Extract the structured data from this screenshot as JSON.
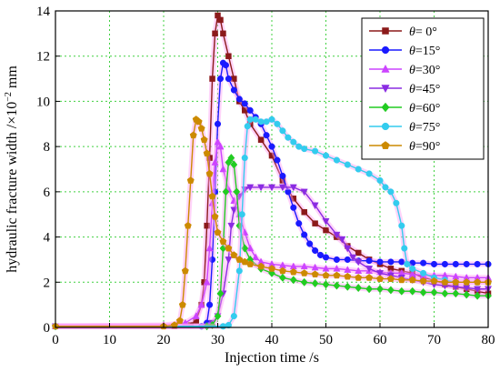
{
  "chart_data": {
    "type": "line",
    "xlabel": "Injection time /s",
    "ylabel_main": "hydraulic fracture width /×10",
    "ylabel_exp": "−2",
    "ylabel_unit": " mm",
    "xlim": [
      0,
      80
    ],
    "ylim": [
      0,
      14
    ],
    "x_ticks": [
      0,
      10,
      20,
      30,
      40,
      50,
      60,
      70,
      80
    ],
    "y_ticks": [
      0,
      2,
      4,
      6,
      8,
      10,
      12,
      14
    ],
    "grid": true,
    "legend_position": "top-right",
    "series": [
      {
        "name": "θ= 0°",
        "legend_symbol": "θ",
        "legend_rest": "= 0°",
        "color": "#8b1a1a",
        "halo": "#ff9ff3",
        "marker": "square",
        "points": [
          [
            0,
            0.05
          ],
          [
            22,
            0.05
          ],
          [
            25,
            0.1
          ],
          [
            26,
            0.3
          ],
          [
            27,
            1.0
          ],
          [
            27.5,
            2.0
          ],
          [
            28,
            4.5
          ],
          [
            28.5,
            7.5
          ],
          [
            29,
            11.0
          ],
          [
            29.5,
            13.0
          ],
          [
            30,
            13.8
          ],
          [
            30.5,
            13.6
          ],
          [
            31,
            13.0
          ],
          [
            32,
            12.0
          ],
          [
            33,
            11.0
          ],
          [
            34,
            10.0
          ],
          [
            35,
            9.6
          ],
          [
            36,
            9.0
          ],
          [
            38,
            8.3
          ],
          [
            40,
            7.6
          ],
          [
            42,
            6.5
          ],
          [
            44,
            5.7
          ],
          [
            46,
            5.1
          ],
          [
            48,
            4.6
          ],
          [
            50,
            4.3
          ],
          [
            52,
            4.0
          ],
          [
            54,
            3.6
          ],
          [
            56,
            3.3
          ],
          [
            58,
            3.0
          ],
          [
            60,
            2.8
          ],
          [
            62,
            2.6
          ],
          [
            64,
            2.5
          ],
          [
            66,
            2.4
          ],
          [
            68,
            2.2
          ],
          [
            70,
            2.1
          ],
          [
            72,
            1.9
          ],
          [
            74,
            1.8
          ],
          [
            76,
            1.7
          ],
          [
            78,
            1.6
          ],
          [
            80,
            1.5
          ]
        ]
      },
      {
        "name": "θ=15°",
        "legend_symbol": "θ",
        "legend_rest": "=15°",
        "color": "#1a1aff",
        "halo": "#ff9ff3",
        "marker": "circle",
        "points": [
          [
            0,
            0.05
          ],
          [
            27,
            0.05
          ],
          [
            28,
            0.2
          ],
          [
            28.5,
            1.0
          ],
          [
            29,
            3.0
          ],
          [
            29.5,
            6.0
          ],
          [
            30,
            9.0
          ],
          [
            30.5,
            11.0
          ],
          [
            31,
            11.7
          ],
          [
            31.5,
            11.6
          ],
          [
            32,
            11.0
          ],
          [
            33,
            10.5
          ],
          [
            34,
            10.1
          ],
          [
            35,
            9.9
          ],
          [
            36,
            9.6
          ],
          [
            37,
            9.3
          ],
          [
            38,
            9.0
          ],
          [
            39,
            8.5
          ],
          [
            40,
            8.0
          ],
          [
            41,
            7.4
          ],
          [
            42,
            6.7
          ],
          [
            43,
            6.0
          ],
          [
            44,
            5.3
          ],
          [
            45,
            4.6
          ],
          [
            46,
            4.1
          ],
          [
            47,
            3.7
          ],
          [
            48,
            3.4
          ],
          [
            49,
            3.2
          ],
          [
            50,
            3.1
          ],
          [
            52,
            3.0
          ],
          [
            54,
            3.0
          ],
          [
            56,
            2.95
          ],
          [
            58,
            2.95
          ],
          [
            60,
            2.9
          ],
          [
            62,
            2.9
          ],
          [
            64,
            2.9
          ],
          [
            66,
            2.85
          ],
          [
            68,
            2.85
          ],
          [
            70,
            2.8
          ],
          [
            72,
            2.8
          ],
          [
            74,
            2.8
          ],
          [
            76,
            2.8
          ],
          [
            78,
            2.8
          ],
          [
            80,
            2.8
          ]
        ]
      },
      {
        "name": "θ=30°",
        "legend_symbol": "θ",
        "legend_rest": "=30°",
        "color": "#cc44ff",
        "halo": "#ff9ff3",
        "marker": "triangle-up",
        "points": [
          [
            0,
            0.05
          ],
          [
            20,
            0.1
          ],
          [
            24,
            0.2
          ],
          [
            26,
            0.5
          ],
          [
            27,
            1.0
          ],
          [
            28,
            2.0
          ],
          [
            28.5,
            3.5
          ],
          [
            29,
            5.5
          ],
          [
            29.5,
            7.3
          ],
          [
            30,
            8.2
          ],
          [
            30.5,
            8.0
          ],
          [
            31,
            7.0
          ],
          [
            32,
            6.1
          ],
          [
            33,
            5.6
          ],
          [
            34,
            5.0
          ],
          [
            35,
            4.2
          ],
          [
            36,
            3.5
          ],
          [
            37,
            3.1
          ],
          [
            38,
            2.9
          ],
          [
            40,
            2.8
          ],
          [
            42,
            2.75
          ],
          [
            44,
            2.7
          ],
          [
            46,
            2.7
          ],
          [
            48,
            2.65
          ],
          [
            50,
            2.6
          ],
          [
            52,
            2.6
          ],
          [
            54,
            2.55
          ],
          [
            56,
            2.5
          ],
          [
            58,
            2.5
          ],
          [
            60,
            2.45
          ],
          [
            62,
            2.4
          ],
          [
            64,
            2.4
          ],
          [
            66,
            2.35
          ],
          [
            68,
            2.3
          ],
          [
            70,
            2.3
          ],
          [
            72,
            2.3
          ],
          [
            74,
            2.25
          ],
          [
            76,
            2.2
          ],
          [
            78,
            2.2
          ],
          [
            80,
            2.2
          ]
        ]
      },
      {
        "name": "θ=45°",
        "legend_symbol": "θ",
        "legend_rest": "=45°",
        "color": "#8a2be2",
        "halo": "#ff9ff3",
        "marker": "triangle-down",
        "points": [
          [
            0,
            0.05
          ],
          [
            28,
            0.05
          ],
          [
            29,
            0.2
          ],
          [
            30,
            0.5
          ],
          [
            31,
            1.5
          ],
          [
            32,
            3.0
          ],
          [
            32.5,
            4.5
          ],
          [
            33,
            5.2
          ],
          [
            34,
            5.8
          ],
          [
            35,
            6.1
          ],
          [
            36,
            6.2
          ],
          [
            38,
            6.2
          ],
          [
            40,
            6.2
          ],
          [
            42,
            6.2
          ],
          [
            44,
            6.2
          ],
          [
            46,
            6.0
          ],
          [
            48,
            5.4
          ],
          [
            50,
            4.7
          ],
          [
            52,
            4.1
          ],
          [
            53,
            3.9
          ],
          [
            54,
            3.5
          ],
          [
            55,
            3.1
          ],
          [
            56,
            2.9
          ],
          [
            58,
            2.6
          ],
          [
            60,
            2.4
          ],
          [
            62,
            2.3
          ],
          [
            64,
            2.2
          ],
          [
            66,
            2.1
          ],
          [
            68,
            2.0
          ],
          [
            70,
            1.9
          ],
          [
            72,
            1.85
          ],
          [
            74,
            1.8
          ],
          [
            76,
            1.75
          ],
          [
            78,
            1.7
          ],
          [
            80,
            1.7
          ]
        ]
      },
      {
        "name": "θ=60°",
        "legend_symbol": "θ",
        "legend_rest": "=60°",
        "color": "#22cc22",
        "halo": "#ff9ff3",
        "marker": "diamond",
        "points": [
          [
            0,
            0.05
          ],
          [
            28,
            0.05
          ],
          [
            29,
            0.1
          ],
          [
            30,
            0.5
          ],
          [
            30.5,
            1.5
          ],
          [
            31,
            3.5
          ],
          [
            31.5,
            6.0
          ],
          [
            32,
            7.3
          ],
          [
            32.5,
            7.5
          ],
          [
            33,
            7.2
          ],
          [
            33.5,
            6.0
          ],
          [
            34,
            4.5
          ],
          [
            35,
            3.5
          ],
          [
            36,
            3.0
          ],
          [
            38,
            2.6
          ],
          [
            40,
            2.4
          ],
          [
            42,
            2.2
          ],
          [
            44,
            2.1
          ],
          [
            46,
            2.0
          ],
          [
            48,
            1.95
          ],
          [
            50,
            1.9
          ],
          [
            52,
            1.85
          ],
          [
            54,
            1.8
          ],
          [
            56,
            1.75
          ],
          [
            58,
            1.7
          ],
          [
            60,
            1.7
          ],
          [
            62,
            1.65
          ],
          [
            64,
            1.6
          ],
          [
            66,
            1.6
          ],
          [
            68,
            1.55
          ],
          [
            70,
            1.55
          ],
          [
            72,
            1.5
          ],
          [
            74,
            1.5
          ],
          [
            76,
            1.45
          ],
          [
            78,
            1.4
          ],
          [
            80,
            1.4
          ]
        ]
      },
      {
        "name": "θ=75°",
        "legend_symbol": "θ",
        "legend_rest": "=75°",
        "color": "#33ccee",
        "halo": "#ff9ff3",
        "marker": "circle",
        "points": [
          [
            0,
            0.05
          ],
          [
            31,
            0.05
          ],
          [
            32,
            0.1
          ],
          [
            33,
            0.5
          ],
          [
            34,
            2.5
          ],
          [
            34.5,
            5.0
          ],
          [
            35,
            7.5
          ],
          [
            35.5,
            8.9
          ],
          [
            36,
            9.2
          ],
          [
            37,
            9.2
          ],
          [
            38,
            9.1
          ],
          [
            39,
            9.1
          ],
          [
            40,
            9.2
          ],
          [
            41,
            9.0
          ],
          [
            42,
            8.7
          ],
          [
            43,
            8.4
          ],
          [
            44,
            8.2
          ],
          [
            45,
            8.0
          ],
          [
            46,
            7.9
          ],
          [
            48,
            7.8
          ],
          [
            50,
            7.6
          ],
          [
            52,
            7.4
          ],
          [
            54,
            7.2
          ],
          [
            56,
            7.0
          ],
          [
            58,
            6.8
          ],
          [
            60,
            6.5
          ],
          [
            61,
            6.2
          ],
          [
            62,
            6.0
          ],
          [
            63,
            5.5
          ],
          [
            64,
            4.5
          ],
          [
            64.5,
            3.5
          ],
          [
            65,
            2.8
          ],
          [
            66,
            2.6
          ],
          [
            68,
            2.4
          ],
          [
            70,
            2.2
          ],
          [
            72,
            2.1
          ],
          [
            74,
            2.0
          ],
          [
            76,
            2.0
          ],
          [
            78,
            2.0
          ],
          [
            80,
            2.0
          ]
        ]
      },
      {
        "name": "θ=90°",
        "legend_symbol": "θ",
        "legend_rest": "=90°",
        "color": "#cc8a00",
        "halo": "#ff9ff3",
        "marker": "pentagon",
        "points": [
          [
            0,
            0.05
          ],
          [
            20,
            0.05
          ],
          [
            22,
            0.1
          ],
          [
            23,
            0.3
          ],
          [
            23.5,
            1.0
          ],
          [
            24,
            2.5
          ],
          [
            24.5,
            4.5
          ],
          [
            25,
            6.5
          ],
          [
            25.5,
            8.5
          ],
          [
            26,
            9.2
          ],
          [
            26.5,
            9.1
          ],
          [
            27,
            8.8
          ],
          [
            27.5,
            8.3
          ],
          [
            28,
            7.7
          ],
          [
            28.5,
            6.8
          ],
          [
            29,
            5.8
          ],
          [
            29.5,
            4.9
          ],
          [
            30,
            4.2
          ],
          [
            31,
            3.8
          ],
          [
            32,
            3.5
          ],
          [
            33,
            3.2
          ],
          [
            34,
            3.0
          ],
          [
            35,
            2.9
          ],
          [
            36,
            2.8
          ],
          [
            38,
            2.7
          ],
          [
            40,
            2.6
          ],
          [
            42,
            2.5
          ],
          [
            44,
            2.45
          ],
          [
            46,
            2.4
          ],
          [
            48,
            2.35
          ],
          [
            50,
            2.3
          ],
          [
            52,
            2.3
          ],
          [
            54,
            2.25
          ],
          [
            56,
            2.2
          ],
          [
            58,
            2.2
          ],
          [
            60,
            2.15
          ],
          [
            62,
            2.15
          ],
          [
            64,
            2.1
          ],
          [
            66,
            2.1
          ],
          [
            68,
            2.05
          ],
          [
            70,
            2.05
          ],
          [
            72,
            2.0
          ],
          [
            74,
            2.0
          ],
          [
            76,
            2.0
          ],
          [
            78,
            2.0
          ],
          [
            80,
            2.0
          ]
        ]
      }
    ]
  }
}
